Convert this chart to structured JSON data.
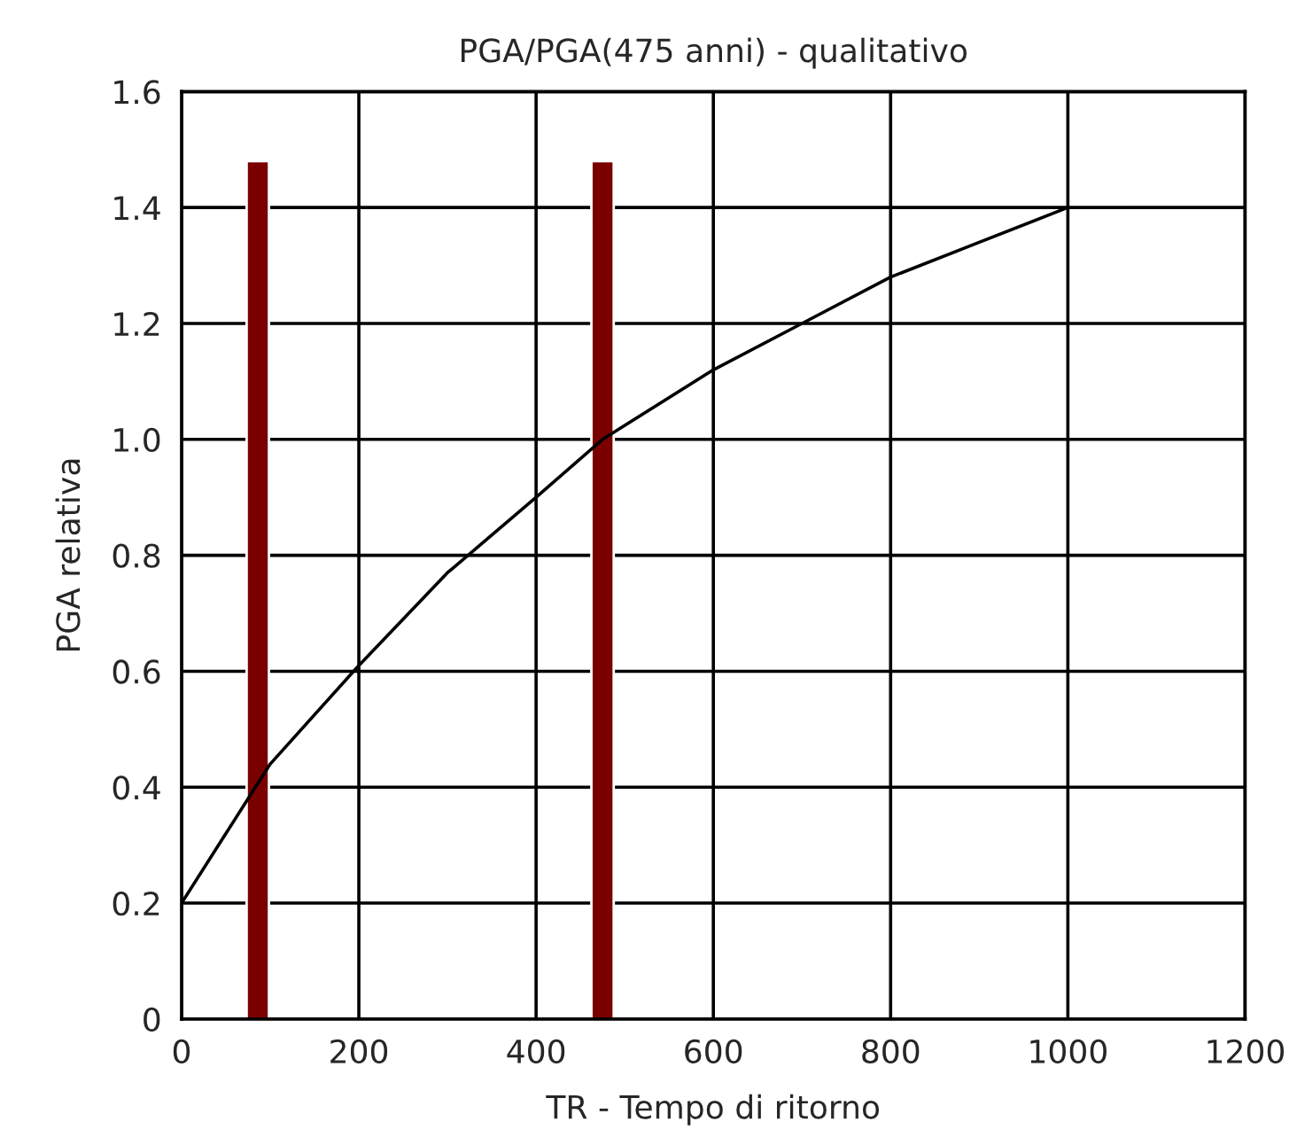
{
  "chart_data": {
    "type": "line",
    "title": "PGA/PGA(475 anni) - qualitativo",
    "xlabel": "TR - Tempo di ritorno",
    "ylabel": "PGA relativa",
    "series": [
      {
        "type": "bar",
        "color": "#7a0000",
        "x": [
          86,
          475
        ],
        "values": [
          1.48,
          1.48
        ]
      },
      {
        "color": "#000000",
        "x": [
          0,
          50,
          100,
          200,
          300,
          400,
          475,
          600,
          700,
          800,
          900,
          1000
        ],
        "values": [
          0.2,
          0.32,
          0.44,
          0.61,
          0.77,
          0.9,
          1.0,
          1.12,
          1.2,
          1.28,
          1.34,
          1.4
        ]
      }
    ],
    "xlim": [
      0,
      1200
    ],
    "xticks": [
      0,
      200,
      400,
      600,
      800,
      1000,
      1200
    ],
    "ylim": [
      0,
      1.6
    ],
    "yticks": [
      0,
      0.2,
      0.4,
      0.6,
      0.8,
      {
        "value": 1.0,
        "label": "1.0"
      },
      1.2,
      1.4,
      1.6
    ],
    "grid": true,
    "marker": "none",
    "line_style": "solid"
  }
}
